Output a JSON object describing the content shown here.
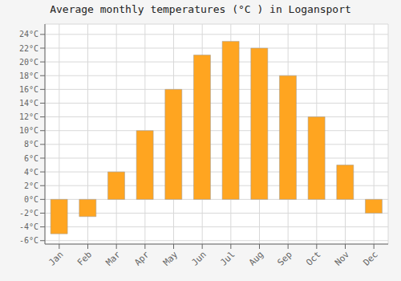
{
  "chart_data": {
    "type": "bar",
    "title": "Average monthly temperatures (°C ) in Logansport",
    "categories": [
      "Jan",
      "Feb",
      "Mar",
      "Apr",
      "May",
      "Jun",
      "Jul",
      "Aug",
      "Sep",
      "Oct",
      "Nov",
      "Dec"
    ],
    "values": [
      -5,
      -2.5,
      4,
      10,
      16,
      21,
      23,
      22,
      18,
      12,
      5,
      -2
    ],
    "color": "#FFA520",
    "ylim": [
      -6.5,
      25.5
    ],
    "yticks": [
      {
        "value": -6,
        "label": "-6°C"
      },
      {
        "value": -4,
        "label": "-4°C"
      },
      {
        "value": -2,
        "label": "-2°C"
      },
      {
        "value": 0,
        "label": "0°C"
      },
      {
        "value": 2,
        "label": "2°C"
      },
      {
        "value": 4,
        "label": "4°C"
      },
      {
        "value": 6,
        "label": "6°C"
      },
      {
        "value": 8,
        "label": "8°C"
      },
      {
        "value": 10,
        "label": "10°C"
      },
      {
        "value": 12,
        "label": "12°C"
      },
      {
        "value": 14,
        "label": "14°C"
      },
      {
        "value": 16,
        "label": "16°C"
      },
      {
        "value": 18,
        "label": "18°C"
      },
      {
        "value": 20,
        "label": "20°C"
      },
      {
        "value": 22,
        "label": "22°C"
      },
      {
        "value": 24,
        "label": "24°C"
      }
    ],
    "grid": true
  }
}
